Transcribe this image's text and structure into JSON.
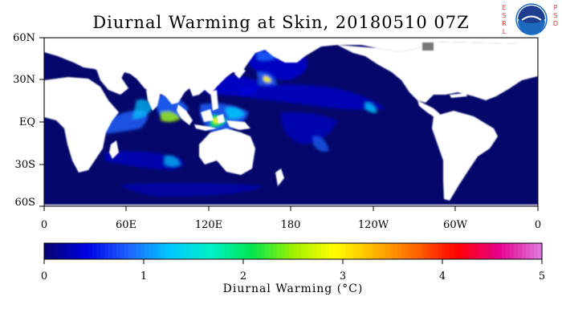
{
  "title": "Diurnal Warming at Skin, 20180510 07Z",
  "logo": {
    "left_letters": [
      "E",
      "S",
      "R",
      "L"
    ],
    "right_letters": [
      "P",
      "S",
      "D"
    ],
    "emblem": "NOAA",
    "emblem_icon": "noaa-emblem-icon"
  },
  "map": {
    "lat_labels": [
      "60N",
      "30N",
      "EQ",
      "30S",
      "60S"
    ],
    "lon_labels": [
      "0",
      "60E",
      "120E",
      "180",
      "120W",
      "60W",
      "0"
    ],
    "ocean_color": "#05086a",
    "land_color": "#ffffff"
  },
  "colorbar": {
    "ticks": [
      "0",
      "1",
      "2",
      "3",
      "4",
      "5"
    ],
    "label": "Diurnal Warming (°C)",
    "colors": [
      "#050575",
      "#0000e6",
      "#1e64ff",
      "#00c8ff",
      "#00f0c8",
      "#00e650",
      "#a0f000",
      "#ffff00",
      "#ffb400",
      "#ff6400",
      "#ff0000",
      "#e6008c",
      "#dc78dc"
    ],
    "min": 0,
    "max": 5
  }
}
